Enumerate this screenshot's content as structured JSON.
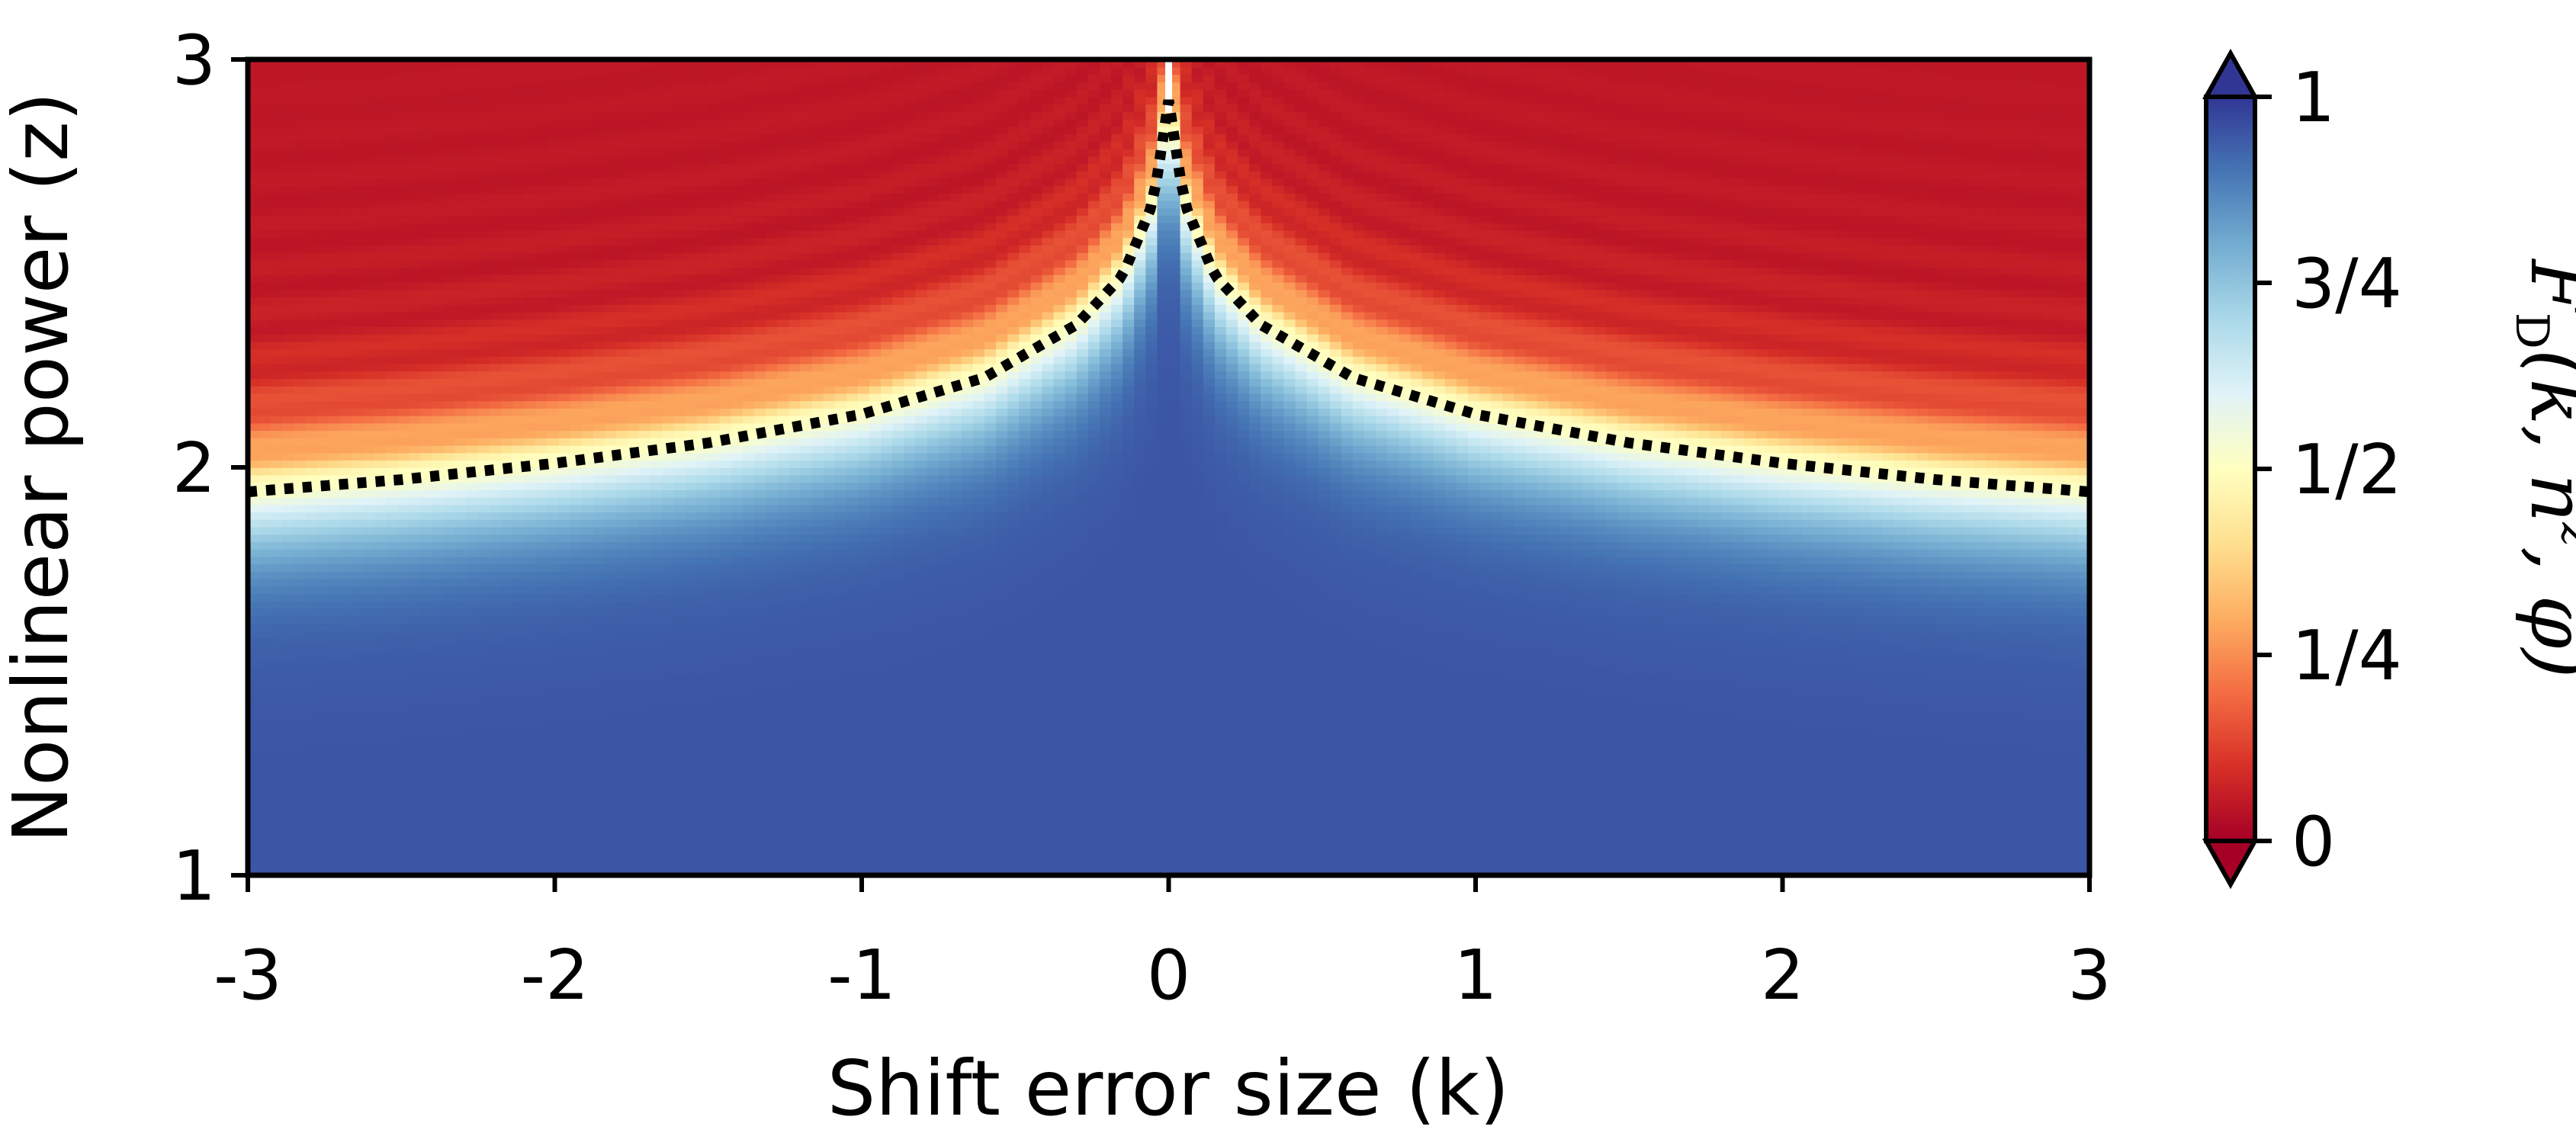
{
  "chart_data": {
    "type": "heatmap",
    "xlabel": "Shift error size (k)",
    "ylabel": "Nonlinear power (z)",
    "xlim": [
      -3,
      3
    ],
    "ylim": [
      1,
      3
    ],
    "x_ticks": [
      "-3",
      "-2",
      "-1",
      "0",
      "1",
      "2",
      "3"
    ],
    "x_tick_values": [
      -3,
      -2,
      -1,
      0,
      1,
      2,
      3
    ],
    "y_ticks": [
      "1",
      "2",
      "3"
    ],
    "y_tick_values": [
      1,
      2,
      3
    ],
    "colorbar": {
      "label": "F̅D(k, n̂z, φ)",
      "label_parts": {
        "F": "F",
        "sub": "D",
        "args": "(k, n̂",
        "sup": "z",
        "end": ", φ)"
      },
      "ticks": [
        "0",
        "1/4",
        "1/2",
        "3/4",
        "1"
      ],
      "tick_values": [
        0,
        0.25,
        0.5,
        0.75,
        1
      ],
      "range": [
        0,
        1
      ],
      "colormap": "RdYlBu",
      "extend": "both",
      "colors": {
        "low": "#a50026",
        "mid": "#ffffbf",
        "high": "#313695"
      }
    },
    "boundary_curve": {
      "style": "dotted",
      "color": "#000000",
      "points": [
        [
          -3.0,
          1.94
        ],
        [
          -2.5,
          1.97
        ],
        [
          -2.0,
          2.01
        ],
        [
          -1.5,
          2.06
        ],
        [
          -1.0,
          2.13
        ],
        [
          -0.6,
          2.22
        ],
        [
          -0.3,
          2.35
        ],
        [
          -0.15,
          2.47
        ],
        [
          -0.05,
          2.65
        ],
        [
          0.0,
          2.9
        ],
        [
          0.05,
          2.65
        ],
        [
          0.15,
          2.47
        ],
        [
          0.3,
          2.35
        ],
        [
          0.6,
          2.22
        ],
        [
          1.0,
          2.13
        ],
        [
          1.5,
          2.06
        ],
        [
          2.0,
          2.01
        ],
        [
          2.5,
          1.97
        ],
        [
          3.0,
          1.94
        ]
      ]
    }
  }
}
